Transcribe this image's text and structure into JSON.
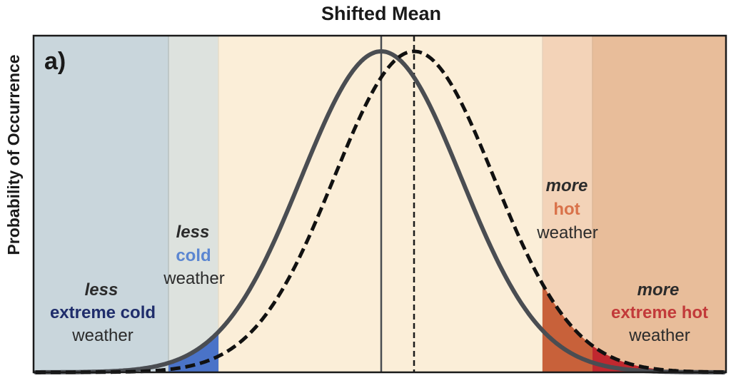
{
  "title": "Shifted Mean",
  "ylabel": "Probability of Occurrence",
  "panel_label": "a)",
  "colors": {
    "extreme_cold_band": "#c9d6dc",
    "cold_band": "#dde2de",
    "middle_band": "#fbeed8",
    "hot_band": "#f3d3b8",
    "extreme_hot_band": "#e8bd9a",
    "cold_fill": "#4a73c8",
    "hot_fill": "#c8613a",
    "extreme_hot_fill": "#c0282f",
    "curve": "#4a4d52",
    "dark_navy_text": "#1f2d6b",
    "blue_text": "#5b86d1",
    "orange_text": "#d9724a",
    "red_text": "#c23a3a",
    "dark_text": "#2b2b2b"
  },
  "labels": {
    "extreme_cold": {
      "line1": "less",
      "line2": "extreme cold",
      "line3": "weather"
    },
    "cold": {
      "line1": "less",
      "line2": "cold",
      "line3": "weather"
    },
    "hot": {
      "line1": "more",
      "line2": "hot",
      "line3": "weather"
    },
    "extreme_hot": {
      "line1": "more",
      "line2": "extreme hot",
      "line3": "weather"
    }
  }
}
